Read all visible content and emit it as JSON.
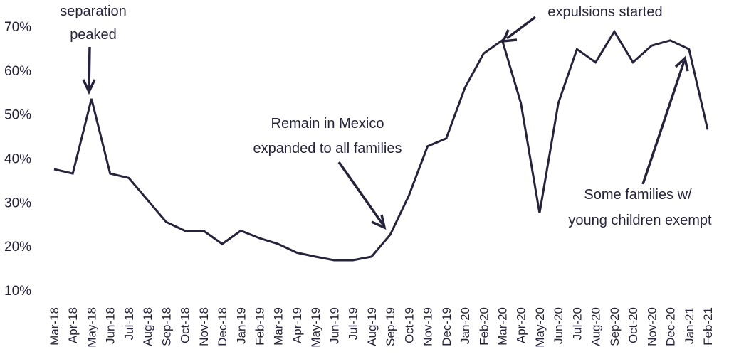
{
  "chart_data": {
    "type": "line",
    "categories": [
      "Mar-18",
      "Apr-18",
      "May-18",
      "Jun-18",
      "Jul-18",
      "Aug-18",
      "Sep-18",
      "Oct-18",
      "Nov-18",
      "Dec-18",
      "Jan-19",
      "Feb-19",
      "Mar-19",
      "Apr-19",
      "May-19",
      "Jun-19",
      "Jul-19",
      "Aug-19",
      "Sep-19",
      "Oct-19",
      "Nov-19",
      "Dec-19",
      "Jan-20",
      "Feb-20",
      "Mar-20",
      "Apr-20",
      "May-20",
      "Jun-20",
      "Jul-20",
      "Aug-20",
      "Sep-20",
      "Oct-20",
      "Nov-20",
      "Dec-20",
      "Jan-21",
      "Feb-21"
    ],
    "series": [
      {
        "values": [
          37.5,
          36.5,
          53.5,
          36.5,
          35.5,
          30.5,
          25.5,
          23.5,
          23.5,
          20.5,
          23.5,
          21.8,
          20.5,
          18.5,
          17.6,
          16.8,
          16.8,
          17.6,
          22.6,
          31.5,
          42.7,
          44.5,
          56,
          63.8,
          66.8,
          52.5,
          27.5,
          52.5,
          64.8,
          61.8,
          68.8,
          61.8,
          65.6,
          66.8,
          64.8,
          46.5
        ],
        "color": "#26243a"
      }
    ],
    "yticks": [
      "10%",
      "20%",
      "30%",
      "40%",
      "50%",
      "60%",
      "70%"
    ],
    "ylim": [
      10,
      70
    ],
    "grid": false,
    "annotations": [
      {
        "lines": [
          "separation",
          "peaked"
        ],
        "points_to": "May-18"
      },
      {
        "lines": [
          "Remain in Mexico",
          "expanded to all families"
        ],
        "points_to": "Sep-19"
      },
      {
        "lines": [
          "expulsions started"
        ],
        "points_to": "Mar-20"
      },
      {
        "lines": [
          "Some families w/",
          "young children exempt"
        ],
        "points_to": "Jan-21"
      }
    ]
  }
}
